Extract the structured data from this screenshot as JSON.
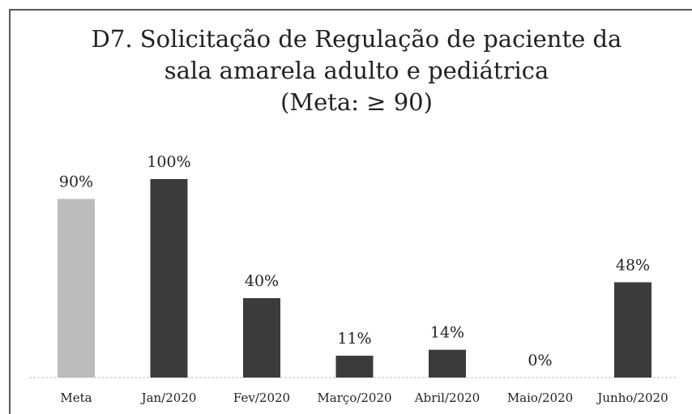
{
  "chart_data": {
    "type": "bar",
    "title": [
      "D7. Solicitação de Regulação de paciente da",
      "sala amarela adulto e pediátrica",
      "(Meta: ≥ 90)"
    ],
    "categories": [
      "Meta",
      "Jan/2020",
      "Fev/2020",
      "Março/2020",
      "Abril/2020",
      "Maio/2020",
      "Junho/2020"
    ],
    "values": [
      90,
      100,
      40,
      11,
      14,
      0,
      48
    ],
    "value_labels": [
      "90%",
      "100%",
      "40%",
      "11%",
      "14%",
      "0%",
      "48%"
    ],
    "colors": [
      "#bcbcbc",
      "#3b3b3b",
      "#3b3b3b",
      "#3b3b3b",
      "#3b3b3b",
      "#3b3b3b",
      "#3b3b3b"
    ]
  }
}
